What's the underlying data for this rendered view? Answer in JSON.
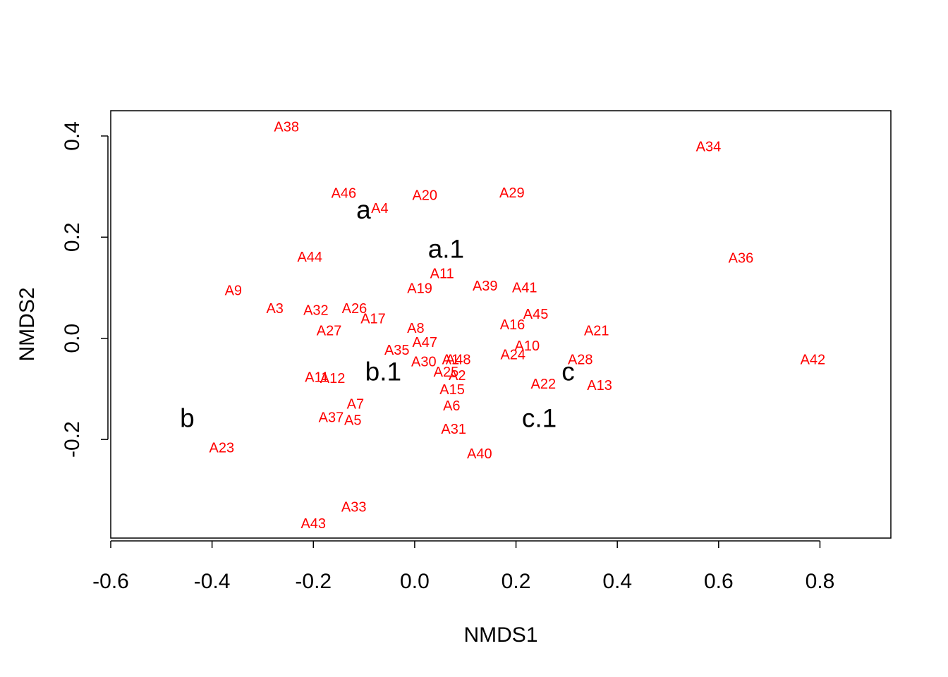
{
  "chart_data": {
    "type": "scatter",
    "title": "",
    "xlabel": "NMDS1",
    "ylabel": "NMDS2",
    "xlim": [
      -0.6,
      0.94
    ],
    "ylim": [
      -0.395,
      0.45
    ],
    "xticks": [
      {
        "value": -0.6,
        "label": "-0.6"
      },
      {
        "value": -0.4,
        "label": "-0.4"
      },
      {
        "value": -0.2,
        "label": "-0.2"
      },
      {
        "value": 0.0,
        "label": "0.0"
      },
      {
        "value": 0.2,
        "label": "0.2"
      },
      {
        "value": 0.4,
        "label": "0.4"
      },
      {
        "value": 0.6,
        "label": "0.6"
      },
      {
        "value": 0.8,
        "label": "0.8"
      }
    ],
    "yticks": [
      {
        "value": -0.2,
        "label": "-0.2"
      },
      {
        "value": 0.0,
        "label": "0.0"
      },
      {
        "value": 0.2,
        "label": "0.2"
      },
      {
        "value": 0.4,
        "label": "0.4"
      }
    ],
    "grid": false,
    "site_color": "#ff0000",
    "group_color": "#000000",
    "sites": [
      {
        "label": "A38",
        "x": -0.253,
        "y": 0.417
      },
      {
        "label": "A34",
        "x": 0.58,
        "y": 0.378
      },
      {
        "label": "A46",
        "x": -0.14,
        "y": 0.286
      },
      {
        "label": "A20",
        "x": 0.02,
        "y": 0.282
      },
      {
        "label": "A29",
        "x": 0.192,
        "y": 0.287
      },
      {
        "label": "A4",
        "x": -0.069,
        "y": 0.256
      },
      {
        "label": "A44",
        "x": -0.207,
        "y": 0.16
      },
      {
        "label": "A36",
        "x": 0.644,
        "y": 0.158
      },
      {
        "label": "A11",
        "x": 0.054,
        "y": 0.127
      },
      {
        "label": "A39",
        "x": 0.139,
        "y": 0.103
      },
      {
        "label": "A41",
        "x": 0.217,
        "y": 0.099
      },
      {
        "label": "A19",
        "x": 0.01,
        "y": 0.098
      },
      {
        "label": "A9",
        "x": -0.358,
        "y": 0.094
      },
      {
        "label": "A3",
        "x": -0.276,
        "y": 0.058
      },
      {
        "label": "A32",
        "x": -0.195,
        "y": 0.055
      },
      {
        "label": "A26",
        "x": -0.119,
        "y": 0.058
      },
      {
        "label": "A17",
        "x": -0.082,
        "y": 0.038
      },
      {
        "label": "A45",
        "x": 0.239,
        "y": 0.047
      },
      {
        "label": "A16",
        "x": 0.193,
        "y": 0.026
      },
      {
        "label": "A21",
        "x": 0.359,
        "y": 0.014
      },
      {
        "label": "A27",
        "x": -0.169,
        "y": 0.014
      },
      {
        "label": "A8",
        "x": 0.002,
        "y": 0.019
      },
      {
        "label": "A47",
        "x": 0.02,
        "y": -0.009
      },
      {
        "label": "A35",
        "x": -0.035,
        "y": -0.024
      },
      {
        "label": "A10",
        "x": 0.222,
        "y": -0.016
      },
      {
        "label": "A24",
        "x": 0.194,
        "y": -0.033
      },
      {
        "label": "A30",
        "x": 0.018,
        "y": -0.047
      },
      {
        "label": "A48",
        "x": 0.086,
        "y": -0.043
      },
      {
        "label": "A1",
        "x": 0.071,
        "y": -0.043
      },
      {
        "label": "A28",
        "x": 0.327,
        "y": -0.043
      },
      {
        "label": "A42",
        "x": 0.786,
        "y": -0.043
      },
      {
        "label": "A25",
        "x": 0.062,
        "y": -0.067
      },
      {
        "label": "A2",
        "x": 0.084,
        "y": -0.074
      },
      {
        "label": "A11",
        "x": -0.193,
        "y": -0.078
      },
      {
        "label": "A12",
        "x": -0.162,
        "y": -0.08
      },
      {
        "label": "A22",
        "x": 0.254,
        "y": -0.091
      },
      {
        "label": "A13",
        "x": 0.365,
        "y": -0.094
      },
      {
        "label": "A15",
        "x": 0.074,
        "y": -0.102
      },
      {
        "label": "A7",
        "x": -0.117,
        "y": -0.131
      },
      {
        "label": "A6",
        "x": 0.073,
        "y": -0.134
      },
      {
        "label": "A37",
        "x": -0.165,
        "y": -0.157
      },
      {
        "label": "A5",
        "x": -0.122,
        "y": -0.163
      },
      {
        "label": "A31",
        "x": 0.077,
        "y": -0.18
      },
      {
        "label": "A23",
        "x": -0.381,
        "y": -0.217
      },
      {
        "label": "A40",
        "x": 0.128,
        "y": -0.229
      },
      {
        "label": "A33",
        "x": -0.12,
        "y": -0.334
      },
      {
        "label": "A43",
        "x": -0.2,
        "y": -0.367
      }
    ],
    "groups": [
      {
        "label": "a",
        "x": -0.101,
        "y": 0.254
      },
      {
        "label": "a.1",
        "x": 0.062,
        "y": 0.177
      },
      {
        "label": "b.1",
        "x": -0.062,
        "y": -0.066
      },
      {
        "label": "c",
        "x": 0.303,
        "y": -0.066
      },
      {
        "label": "b",
        "x": -0.449,
        "y": -0.158
      },
      {
        "label": "c.1",
        "x": 0.246,
        "y": -0.158
      }
    ]
  }
}
